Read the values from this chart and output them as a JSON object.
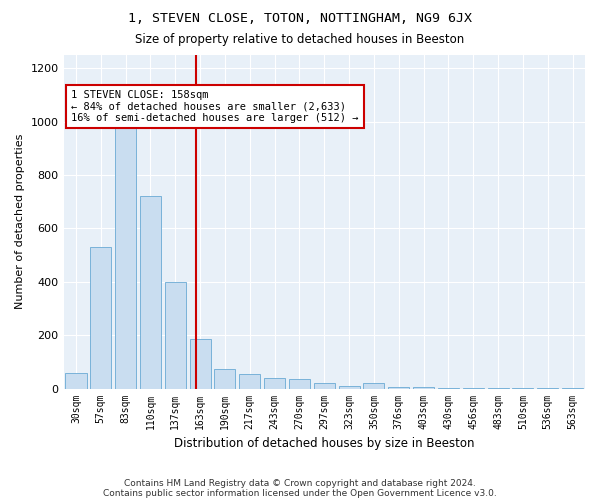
{
  "title": "1, STEVEN CLOSE, TOTON, NOTTINGHAM, NG9 6JX",
  "subtitle": "Size of property relative to detached houses in Beeston",
  "xlabel": "Distribution of detached houses by size in Beeston",
  "ylabel": "Number of detached properties",
  "bar_color": "#c9ddf0",
  "bar_edge_color": "#6aaad4",
  "background_color": "#e8f0f8",
  "figure_color": "#ffffff",
  "grid_color": "#ffffff",
  "bins": [
    "30sqm",
    "57sqm",
    "83sqm",
    "110sqm",
    "137sqm",
    "163sqm",
    "190sqm",
    "217sqm",
    "243sqm",
    "270sqm",
    "297sqm",
    "323sqm",
    "350sqm",
    "376sqm",
    "403sqm",
    "430sqm",
    "456sqm",
    "483sqm",
    "510sqm",
    "536sqm",
    "563sqm"
  ],
  "values": [
    60,
    530,
    1000,
    720,
    400,
    185,
    75,
    55,
    40,
    35,
    20,
    10,
    20,
    5,
    5,
    3,
    2,
    2,
    2,
    2,
    2
  ],
  "ylim": [
    0,
    1250
  ],
  "yticks": [
    0,
    200,
    400,
    600,
    800,
    1000,
    1200
  ],
  "vline_x_index": 4.82,
  "vline_color": "#cc0000",
  "annotation_text": "1 STEVEN CLOSE: 158sqm\n← 84% of detached houses are smaller (2,633)\n16% of semi-detached houses are larger (512) →",
  "annotation_box_color": "#ffffff",
  "annotation_box_edge": "#cc0000",
  "footer1": "Contains HM Land Registry data © Crown copyright and database right 2024.",
  "footer2": "Contains public sector information licensed under the Open Government Licence v3.0."
}
